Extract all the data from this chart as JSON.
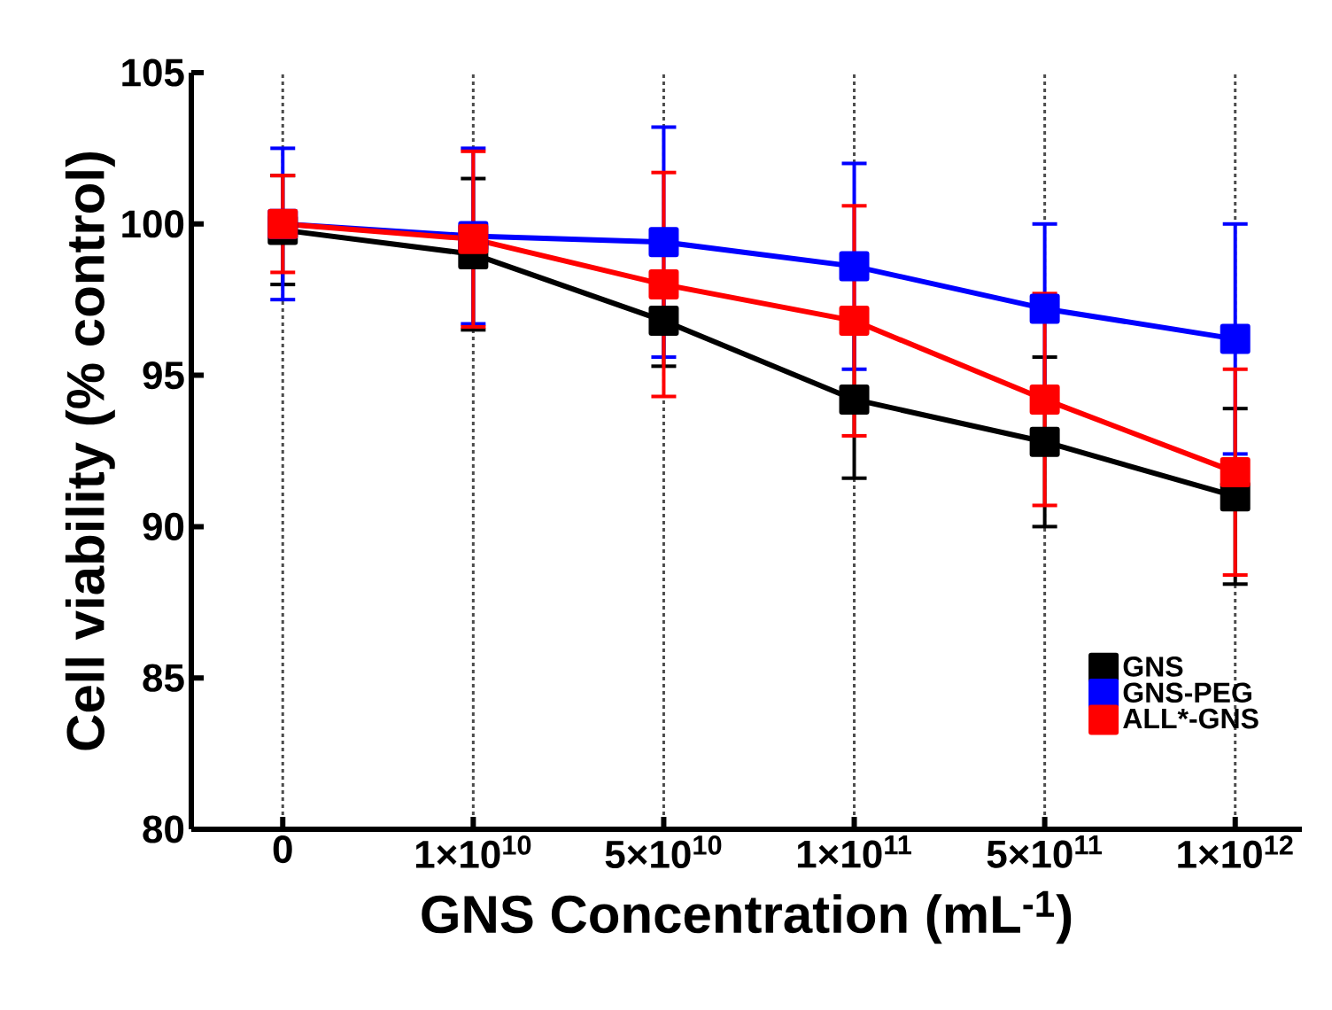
{
  "chart_data": {
    "type": "line",
    "xlabel": "GNS Concentration (mL$^{-1}$)",
    "ylabel": "Cell viability (% control)",
    "categories": [
      "0",
      "1×10$^{10}$",
      "5×10$^{10}$",
      "1×10$^{11}$",
      "5×10$^{11}$",
      "1×10$^{12}$"
    ],
    "series": [
      {
        "name": "GNS",
        "color": "#000000",
        "values": [
          99.8,
          99.0,
          96.8,
          94.2,
          92.8,
          91.0
        ],
        "errors": [
          1.8,
          2.5,
          1.5,
          2.6,
          2.8,
          2.9
        ]
      },
      {
        "name": "GNS-PEG",
        "color": "#0000ff",
        "values": [
          100.0,
          99.6,
          99.4,
          98.6,
          97.2,
          96.2
        ],
        "errors": [
          2.5,
          2.9,
          3.8,
          3.4,
          2.8,
          3.8
        ]
      },
      {
        "name": "ALL*-GNS",
        "color": "#ff0000",
        "values": [
          100.0,
          99.5,
          98.0,
          96.8,
          94.2,
          91.8
        ],
        "errors": [
          1.6,
          2.9,
          3.7,
          3.8,
          3.5,
          3.4
        ]
      }
    ],
    "ylim": [
      80,
      105
    ],
    "yticks": [
      80,
      85,
      90,
      95,
      100,
      105
    ],
    "grid": "x",
    "legend": "bottom right",
    "marker": "square",
    "line_style": "solid"
  }
}
